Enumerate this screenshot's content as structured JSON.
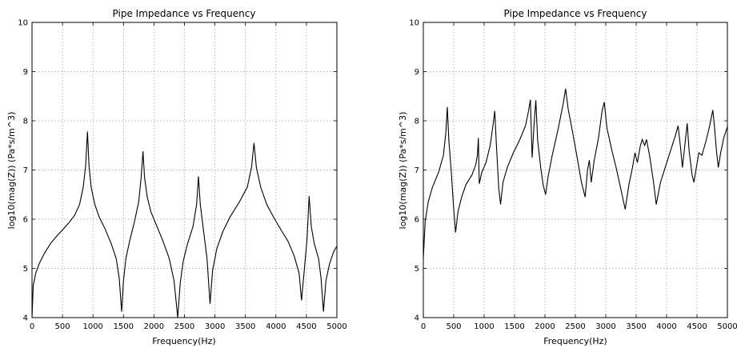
{
  "chart_data": [
    {
      "type": "line",
      "title": "Pipe Impedance vs Frequency",
      "xlabel": "Frequency(Hz)",
      "ylabel": "log10(mag(Z)) (Pa*s/m^3)",
      "xlim": [
        0,
        5000
      ],
      "ylim": [
        4,
        10
      ],
      "xticks": [
        "0",
        "500",
        "1000",
        "1500",
        "2000",
        "2500",
        "3000",
        "3500",
        "4000",
        "4500",
        "5000"
      ],
      "yticks": [
        "4",
        "5",
        "6",
        "7",
        "8",
        "9",
        "10"
      ],
      "grid": true,
      "line_color": "#000000",
      "series": [
        {
          "values": [
            [
              0,
              4.0
            ],
            [
              20,
              4.65
            ],
            [
              60,
              4.9
            ],
            [
              120,
              5.1
            ],
            [
              200,
              5.3
            ],
            [
              300,
              5.5
            ],
            [
              400,
              5.65
            ],
            [
              500,
              5.78
            ],
            [
              600,
              5.92
            ],
            [
              700,
              6.08
            ],
            [
              780,
              6.3
            ],
            [
              840,
              6.65
            ],
            [
              880,
              7.1
            ],
            [
              910,
              7.78
            ],
            [
              935,
              7.1
            ],
            [
              970,
              6.65
            ],
            [
              1030,
              6.3
            ],
            [
              1100,
              6.05
            ],
            [
              1200,
              5.8
            ],
            [
              1300,
              5.5
            ],
            [
              1380,
              5.2
            ],
            [
              1430,
              4.8
            ],
            [
              1470,
              4.12
            ],
            [
              1500,
              4.75
            ],
            [
              1540,
              5.2
            ],
            [
              1600,
              5.55
            ],
            [
              1680,
              5.95
            ],
            [
              1750,
              6.35
            ],
            [
              1790,
              6.85
            ],
            [
              1820,
              7.38
            ],
            [
              1845,
              6.85
            ],
            [
              1890,
              6.45
            ],
            [
              1950,
              6.15
            ],
            [
              2050,
              5.85
            ],
            [
              2150,
              5.55
            ],
            [
              2250,
              5.2
            ],
            [
              2330,
              4.75
            ],
            [
              2390,
              4.0
            ],
            [
              2430,
              4.7
            ],
            [
              2480,
              5.15
            ],
            [
              2550,
              5.5
            ],
            [
              2640,
              5.85
            ],
            [
              2700,
              6.3
            ],
            [
              2730,
              6.87
            ],
            [
              2760,
              6.3
            ],
            [
              2810,
              5.8
            ],
            [
              2870,
              5.2
            ],
            [
              2920,
              4.28
            ],
            [
              2960,
              4.95
            ],
            [
              3030,
              5.4
            ],
            [
              3130,
              5.75
            ],
            [
              3250,
              6.05
            ],
            [
              3400,
              6.35
            ],
            [
              3530,
              6.65
            ],
            [
              3600,
              7.05
            ],
            [
              3640,
              7.55
            ],
            [
              3680,
              7.05
            ],
            [
              3750,
              6.65
            ],
            [
              3850,
              6.3
            ],
            [
              3980,
              6.0
            ],
            [
              4100,
              5.75
            ],
            [
              4200,
              5.55
            ],
            [
              4300,
              5.25
            ],
            [
              4380,
              4.9
            ],
            [
              4420,
              4.35
            ],
            [
              4460,
              4.9
            ],
            [
              4510,
              5.6
            ],
            [
              4545,
              6.47
            ],
            [
              4580,
              5.85
            ],
            [
              4630,
              5.5
            ],
            [
              4700,
              5.2
            ],
            [
              4740,
              4.8
            ],
            [
              4780,
              4.12
            ],
            [
              4820,
              4.75
            ],
            [
              4880,
              5.1
            ],
            [
              4950,
              5.35
            ],
            [
              5000,
              5.45
            ]
          ]
        }
      ]
    },
    {
      "type": "line",
      "title": "Pipe Impedance vs Frequency",
      "xlabel": "Frequency(Hz)",
      "ylabel": "log10(mag(Z)) (Pa*s/m^3)",
      "xlim": [
        0,
        5000
      ],
      "ylim": [
        4,
        10
      ],
      "xticks": [
        "0",
        "500",
        "1000",
        "1500",
        "2000",
        "2500",
        "3000",
        "3500",
        "4000",
        "4500",
        "5000"
      ],
      "yticks": [
        "4",
        "5",
        "6",
        "7",
        "8",
        "9",
        "10"
      ],
      "grid": true,
      "line_color": "#000000",
      "series": [
        {
          "values": [
            [
              0,
              5.2
            ],
            [
              30,
              5.95
            ],
            [
              80,
              6.35
            ],
            [
              150,
              6.65
            ],
            [
              250,
              6.95
            ],
            [
              330,
              7.3
            ],
            [
              370,
              7.75
            ],
            [
              395,
              8.28
            ],
            [
              420,
              7.6
            ],
            [
              460,
              6.95
            ],
            [
              500,
              6.2
            ],
            [
              530,
              5.73
            ],
            [
              570,
              6.15
            ],
            [
              630,
              6.45
            ],
            [
              700,
              6.7
            ],
            [
              800,
              6.9
            ],
            [
              860,
              7.1
            ],
            [
              890,
              7.3
            ],
            [
              905,
              7.65
            ],
            [
              920,
              6.72
            ],
            [
              960,
              6.95
            ],
            [
              1030,
              7.15
            ],
            [
              1100,
              7.5
            ],
            [
              1150,
              7.95
            ],
            [
              1175,
              8.2
            ],
            [
              1200,
              7.55
            ],
            [
              1240,
              6.65
            ],
            [
              1270,
              6.3
            ],
            [
              1310,
              6.75
            ],
            [
              1380,
              7.05
            ],
            [
              1480,
              7.35
            ],
            [
              1580,
              7.6
            ],
            [
              1680,
              7.9
            ],
            [
              1730,
              8.2
            ],
            [
              1760,
              8.43
            ],
            [
              1790,
              7.25
            ],
            [
              1820,
              7.9
            ],
            [
              1850,
              8.42
            ],
            [
              1880,
              7.6
            ],
            [
              1930,
              7.05
            ],
            [
              1970,
              6.7
            ],
            [
              2010,
              6.5
            ],
            [
              2050,
              6.85
            ],
            [
              2120,
              7.3
            ],
            [
              2220,
              7.85
            ],
            [
              2300,
              8.35
            ],
            [
              2340,
              8.65
            ],
            [
              2380,
              8.25
            ],
            [
              2450,
              7.8
            ],
            [
              2530,
              7.25
            ],
            [
              2600,
              6.75
            ],
            [
              2660,
              6.45
            ],
            [
              2700,
              7.0
            ],
            [
              2730,
              7.2
            ],
            [
              2760,
              6.75
            ],
            [
              2810,
              7.2
            ],
            [
              2880,
              7.65
            ],
            [
              2940,
              8.2
            ],
            [
              2975,
              8.38
            ],
            [
              3020,
              7.85
            ],
            [
              3100,
              7.4
            ],
            [
              3170,
              7.05
            ],
            [
              3250,
              6.6
            ],
            [
              3320,
              6.2
            ],
            [
              3380,
              6.7
            ],
            [
              3440,
              7.05
            ],
            [
              3480,
              7.35
            ],
            [
              3520,
              7.15
            ],
            [
              3570,
              7.5
            ],
            [
              3600,
              7.62
            ],
            [
              3640,
              7.5
            ],
            [
              3670,
              7.62
            ],
            [
              3720,
              7.3
            ],
            [
              3780,
              6.8
            ],
            [
              3830,
              6.3
            ],
            [
              3900,
              6.75
            ],
            [
              3990,
              7.1
            ],
            [
              4080,
              7.45
            ],
            [
              4150,
              7.72
            ],
            [
              4190,
              7.9
            ],
            [
              4230,
              7.45
            ],
            [
              4260,
              7.05
            ],
            [
              4300,
              7.5
            ],
            [
              4340,
              7.95
            ],
            [
              4370,
              7.4
            ],
            [
              4420,
              6.9
            ],
            [
              4450,
              6.75
            ],
            [
              4490,
              7.05
            ],
            [
              4530,
              7.35
            ],
            [
              4580,
              7.3
            ],
            [
              4640,
              7.55
            ],
            [
              4700,
              7.85
            ],
            [
              4760,
              8.22
            ],
            [
              4790,
              7.85
            ],
            [
              4820,
              7.4
            ],
            [
              4850,
              7.05
            ],
            [
              4890,
              7.35
            ],
            [
              4940,
              7.65
            ],
            [
              5000,
              7.88
            ]
          ]
        }
      ]
    }
  ]
}
